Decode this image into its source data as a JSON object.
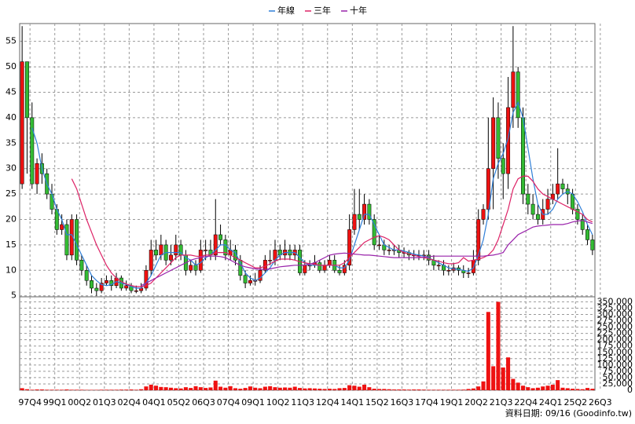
{
  "chart_data": {
    "type": "candlestick",
    "categories": [
      "97Q4",
      null,
      null,
      null,
      null,
      "99Q1",
      null,
      null,
      null,
      null,
      "00Q2",
      null,
      null,
      null,
      null,
      "01Q3",
      null,
      null,
      null,
      null,
      "02Q4",
      null,
      null,
      null,
      null,
      "04Q1",
      null,
      null,
      null,
      null,
      "05Q2",
      null,
      null,
      null,
      null,
      "06Q3",
      null,
      null,
      null,
      null,
      "07Q4",
      null,
      null,
      null,
      null,
      "09Q1",
      null,
      null,
      null,
      null,
      "10Q2",
      null,
      null,
      null,
      null,
      "11Q3",
      null,
      null,
      null,
      null,
      "12Q4",
      null,
      null,
      null,
      null,
      "14Q1",
      null,
      null,
      null,
      null,
      "15Q2",
      null,
      null,
      null,
      null,
      "16Q3",
      null,
      null,
      null,
      null,
      "17Q4",
      null,
      null,
      null,
      null,
      "19Q1",
      null,
      null,
      null,
      null,
      "20Q2",
      null,
      null,
      null,
      null,
      "21Q3",
      null,
      null,
      null,
      null,
      "22Q4",
      null,
      null,
      null,
      null,
      "24Q1",
      null,
      null,
      null,
      null,
      "25Q2",
      null,
      null,
      null,
      null,
      "26Q3"
    ],
    "open": [
      27,
      51,
      40,
      27,
      31,
      29,
      25,
      22,
      18,
      19,
      13,
      20,
      12,
      10,
      8,
      6.5,
      6,
      7.5,
      8,
      7,
      8.5,
      6.5,
      7,
      6,
      6,
      6.5,
      10,
      14,
      13,
      15,
      12,
      13,
      15,
      13,
      10,
      11,
      10,
      14,
      14,
      13,
      17,
      16,
      13,
      14,
      12,
      9,
      7.5,
      8,
      8,
      10,
      12,
      12,
      14,
      13,
      14,
      13,
      14,
      9.5,
      11,
      11,
      11.5,
      10,
      11,
      12,
      10,
      9.5,
      11,
      18,
      21,
      20,
      23,
      20,
      15,
      15,
      14,
      14,
      14,
      13.5,
      13.5,
      13,
      13,
      13,
      13,
      12,
      11,
      11,
      10,
      10,
      10.5,
      10,
      9.5,
      9.5,
      12,
      20,
      22,
      30,
      40,
      32,
      29,
      42,
      49,
      40,
      25,
      23,
      21,
      20,
      22,
      24,
      25,
      27,
      26,
      25,
      22,
      20,
      18,
      16
    ],
    "high": [
      58,
      51,
      43,
      32,
      33,
      30,
      27,
      23,
      21,
      20,
      21,
      21,
      13,
      11,
      9,
      7.5,
      8.5,
      9,
      9,
      9.5,
      9,
      8,
      7.5,
      7,
      7.5,
      11,
      16,
      16,
      17,
      16,
      15,
      17,
      16,
      14,
      12,
      12,
      16,
      16,
      16,
      24,
      19,
      17,
      16,
      15,
      13,
      10,
      9,
      9.5,
      11,
      13,
      14,
      16,
      15,
      16,
      15,
      15,
      15,
      12,
      12,
      13,
      12,
      12,
      13,
      13,
      11,
      12,
      21,
      26,
      26,
      25,
      24,
      21,
      17,
      16,
      15,
      15,
      15,
      14.5,
      14,
      14,
      14,
      14,
      14,
      13,
      12,
      12,
      11,
      11.5,
      11,
      11,
      10.5,
      14,
      22,
      23,
      40,
      44,
      43,
      35,
      48,
      58,
      50,
      42,
      27,
      25,
      23,
      24,
      26,
      27,
      34,
      28,
      27,
      26,
      23,
      21,
      19,
      17
    ],
    "low": [
      26,
      29,
      26,
      25,
      27,
      24,
      21,
      17,
      17,
      12,
      12,
      11,
      9,
      7,
      5.5,
      5,
      5.5,
      7,
      6,
      6.5,
      6,
      6,
      5.5,
      5.5,
      5.5,
      6,
      9,
      12,
      12,
      11,
      11,
      12,
      12,
      9,
      9.5,
      9,
      9.5,
      12,
      12,
      12,
      15,
      12,
      12,
      11,
      8,
      6.5,
      7,
      7,
      7.5,
      9.5,
      11,
      11,
      12,
      12,
      12,
      12,
      9,
      9,
      10,
      10.5,
      9.5,
      9.5,
      10.5,
      9.5,
      9,
      9,
      10,
      17,
      18,
      19,
      19,
      14,
      14,
      13,
      13,
      13,
      12.5,
      12.5,
      12,
      12,
      12,
      12,
      11,
      10,
      10,
      9,
      9,
      9.5,
      9,
      8.5,
      8.5,
      9,
      11,
      19,
      20,
      22,
      28,
      24,
      26,
      38,
      38,
      23,
      21,
      20,
      19,
      19,
      21,
      23,
      24,
      25,
      23,
      21,
      19,
      17,
      15,
      13
    ],
    "close": [
      51,
      40,
      27,
      31,
      29,
      25,
      22,
      18,
      19,
      13,
      20,
      12,
      10,
      8,
      6.5,
      6,
      7.5,
      8,
      7,
      8.5,
      6.5,
      7,
      6,
      6,
      6.5,
      10,
      14,
      13,
      15,
      12,
      13,
      15,
      13,
      10,
      11,
      10,
      14,
      14,
      13,
      17,
      16,
      13,
      14,
      12,
      9,
      7.5,
      8,
      8,
      10,
      12,
      12,
      14,
      13,
      14,
      13,
      14,
      9.5,
      11,
      11,
      11.5,
      10,
      11,
      12,
      10,
      9.5,
      11,
      18,
      21,
      20,
      23,
      20,
      15,
      15,
      14,
      14,
      14,
      13.5,
      13.5,
      13,
      13,
      13,
      13,
      12,
      11,
      11,
      10,
      10,
      10.5,
      10,
      9.5,
      9.5,
      12,
      20,
      22,
      30,
      40,
      32,
      29,
      42,
      49,
      40,
      25,
      23,
      21,
      20,
      22,
      24,
      25,
      27,
      26,
      25,
      22,
      20,
      18,
      16,
      14
    ],
    "up_color": "#ee1111",
    "down_color": "#33bb33",
    "series": [
      {
        "name": "年線",
        "color": "#2f7fd8",
        "values": [
          null,
          null,
          38,
          35,
          30,
          27,
          25,
          22,
          20,
          17,
          17,
          15,
          13,
          11,
          9,
          8,
          7.2,
          7,
          7.2,
          7.8,
          7.5,
          7.2,
          6.8,
          6.5,
          6.5,
          7.5,
          9,
          11,
          13,
          13.5,
          13.5,
          13.5,
          13.5,
          12.5,
          12,
          11,
          11.5,
          12.5,
          13,
          14,
          15,
          15,
          14,
          13.5,
          11.5,
          9.5,
          8.5,
          8,
          8.5,
          9.5,
          10.5,
          12,
          13,
          13.5,
          13.5,
          13.5,
          12.5,
          11.5,
          11,
          11,
          11,
          11,
          11,
          11,
          10.5,
          10.5,
          12,
          15,
          18,
          21,
          21,
          19,
          17,
          15,
          14.5,
          14,
          14,
          13.8,
          13.5,
          13.2,
          13,
          12.8,
          12.4,
          12,
          11.5,
          11,
          10.5,
          10.3,
          10.2,
          10,
          9.8,
          10.5,
          13,
          16,
          21,
          28,
          31,
          33,
          36,
          41,
          43,
          40,
          34,
          28,
          23,
          21,
          21,
          22,
          24,
          25,
          25.5,
          25,
          23.5,
          21.5,
          19,
          17
        ]
      },
      {
        "name": "三年",
        "color": "#dd2266",
        "values": [
          null,
          null,
          null,
          null,
          null,
          null,
          null,
          null,
          null,
          null,
          28,
          26,
          23,
          20,
          17.5,
          15,
          13,
          11,
          9.5,
          8.5,
          7.8,
          7.3,
          7,
          6.8,
          6.8,
          7,
          7.5,
          8.5,
          9.5,
          10.5,
          11.5,
          12.5,
          13,
          13,
          13,
          12.8,
          12.7,
          13,
          13,
          13.5,
          13.5,
          13.5,
          13,
          12.5,
          12,
          11.5,
          11,
          10.5,
          10.5,
          10.8,
          11.3,
          11.8,
          12.2,
          12.2,
          12.2,
          12,
          11.7,
          11.5,
          11.3,
          11.2,
          11,
          11,
          11,
          11,
          11,
          11.5,
          12.5,
          13.5,
          14.5,
          15.5,
          16,
          16.5,
          16.8,
          16.5,
          16,
          15,
          14,
          13.5,
          13.2,
          13,
          12.7,
          12.5,
          12.3,
          12,
          11.8,
          11.5,
          11.3,
          11.3,
          11.5,
          12.5,
          11.8,
          12,
          12.2,
          12.5,
          13,
          14,
          16,
          19,
          22,
          26,
          28,
          28.5,
          28.5,
          27.5,
          26,
          25,
          24.5,
          24,
          23.5,
          23,
          22.5,
          22,
          21.5,
          21,
          20,
          19.5
        ]
      },
      {
        "name": "十年",
        "color": "#9922aa",
        "values": [
          null,
          null,
          null,
          null,
          null,
          null,
          null,
          null,
          null,
          null,
          null,
          null,
          null,
          null,
          null,
          null,
          null,
          null,
          null,
          null,
          null,
          null,
          null,
          null,
          7,
          7.5,
          8,
          8.5,
          9,
          9.5,
          10,
          10.5,
          11,
          11.5,
          12,
          12.3,
          12.5,
          12.7,
          12.8,
          12.8,
          12.7,
          12.5,
          12,
          11.5,
          11,
          10.7,
          10.5,
          10.3,
          10.2,
          10.2,
          10.3,
          10.5,
          10.7,
          10.8,
          10.9,
          11,
          11,
          11,
          11.2,
          11.5,
          12,
          12.5,
          13,
          13.2,
          13.3,
          13.4,
          13.3,
          13.2,
          13.1,
          13,
          13,
          12.9,
          12.8,
          12.7,
          12.6,
          12.5,
          12.5,
          12.5,
          12.5,
          12.5,
          12.5,
          12.6,
          12.7,
          12.8,
          12.8,
          12.8,
          12.8,
          12.8,
          12.8,
          12.8,
          12.8,
          12.8,
          12.8,
          12.8,
          12.9,
          13,
          13.2,
          13.5,
          15,
          16,
          17,
          17.5,
          18,
          18.5,
          18.7,
          18.8,
          18.9,
          19,
          19,
          19,
          19.2,
          19.5,
          19.7,
          19.8,
          19.5,
          19.2
        ]
      }
    ],
    "volume": {
      "color": "#ee1111",
      "axis": "y2",
      "values": [
        8000,
        4000,
        2000,
        3000,
        3000,
        2000,
        2000,
        2000,
        2000,
        3000,
        2000,
        2000,
        2000,
        1500,
        1500,
        1500,
        2000,
        2000,
        2000,
        2000,
        2500,
        2500,
        3000,
        2000,
        4000,
        15000,
        22000,
        18000,
        13000,
        12000,
        10000,
        8000,
        7000,
        12000,
        9000,
        16000,
        12000,
        9000,
        11000,
        38000,
        14000,
        10000,
        16000,
        8000,
        6000,
        9000,
        15000,
        10000,
        8000,
        14000,
        16000,
        12000,
        10000,
        11000,
        10000,
        14000,
        9000,
        7000,
        8000,
        7000,
        6000,
        5000,
        6000,
        5000,
        8000,
        9000,
        20000,
        18000,
        14000,
        22000,
        12000,
        6000,
        5000,
        5000,
        4000,
        3000,
        3000,
        3000,
        2500,
        3000,
        3000,
        2500,
        2000,
        2000,
        2000,
        2000,
        2000,
        2000,
        2000,
        2500,
        5000,
        7000,
        15000,
        35000,
        310000,
        95000,
        350000,
        90000,
        130000,
        45000,
        30000,
        18000,
        12000,
        8000,
        10000,
        15000,
        18000,
        22000,
        40000,
        10000,
        8000,
        6000,
        5000,
        4000,
        9000,
        6000
      ]
    },
    "ylim": [
      4.8,
      58.5
    ],
    "yticks": [
      5,
      10,
      15,
      20,
      25,
      30,
      35,
      40,
      45,
      50,
      55
    ],
    "y2lim": [
      0,
      370000
    ],
    "y2ticks": [
      0,
      {
        "value": 25000,
        "label": "25,000"
      },
      {
        "value": 50000,
        "label": "50,000"
      },
      {
        "value": 75000,
        "label": "75,000"
      },
      {
        "value": 100000,
        "label": "100,000"
      },
      {
        "value": 125000,
        "label": "125,000"
      },
      {
        "value": 150000,
        "label": "150,000"
      },
      {
        "value": 175000,
        "label": "175,000"
      },
      {
        "value": 200000,
        "label": "200,000"
      },
      {
        "value": 225000,
        "label": "225,000"
      },
      {
        "value": 250000,
        "label": "250,000"
      },
      {
        "value": 275000,
        "label": "275,000"
      },
      {
        "value": 300000,
        "label": "300,000"
      },
      {
        "value": 325000,
        "label": "325,000"
      },
      {
        "value": 350000,
        "label": "350,000"
      }
    ],
    "grid": true,
    "footer": "資料日期: 09/16 (Goodinfo.tw)"
  }
}
